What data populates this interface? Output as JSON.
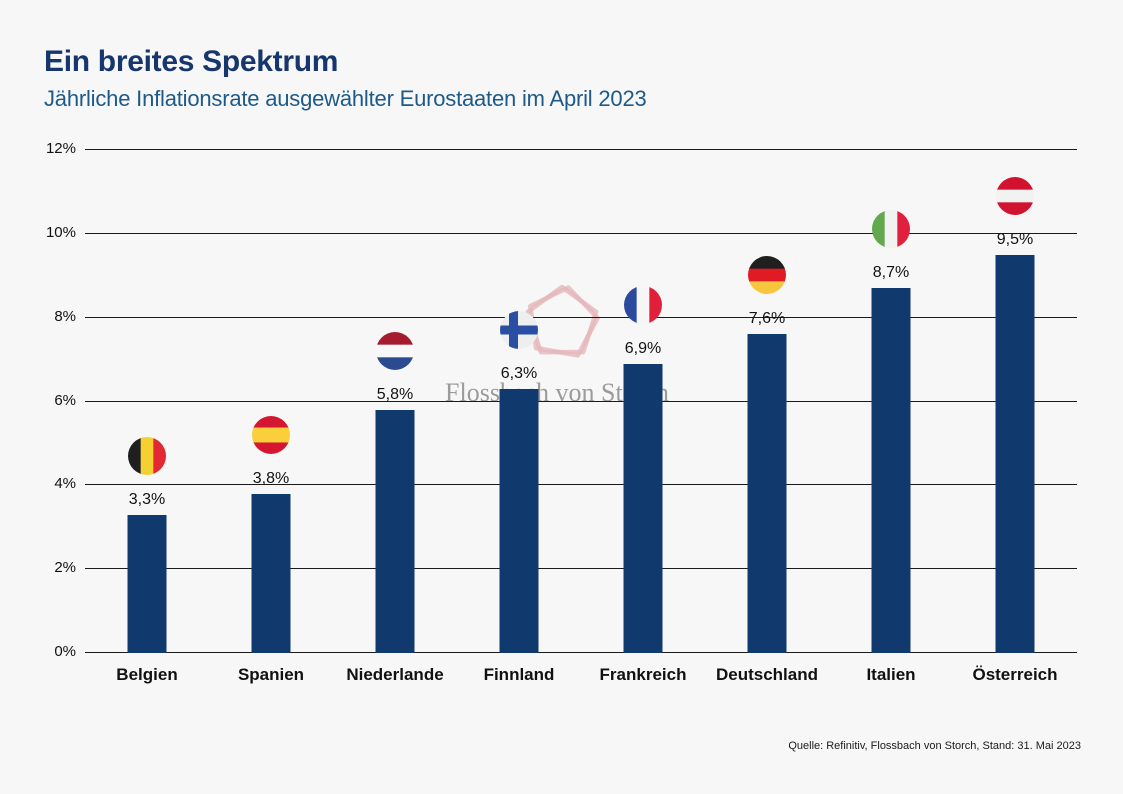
{
  "page": {
    "background": "#f7f7f7"
  },
  "header": {
    "title": "Ein breites Spektrum",
    "subtitle": "Jährliche Inflationsrate ausgewählter Eurostaaten im April 2023",
    "title_color": "#17366d",
    "subtitle_color": "#1d5a8a"
  },
  "watermark": {
    "text": "Flossbach von Storch",
    "text_color": "#9b9b9b",
    "pentagon_color": "#e5b6ba",
    "logo_icon": "flossbach-pentagon-logo-icon"
  },
  "footer": {
    "source": "Quelle: Refinitiv, Flossbach von Storch, Stand: 31. Mai 2023"
  },
  "chart_data": {
    "type": "bar",
    "title": "Ein breites Spektrum",
    "subtitle": "Jährliche Inflationsrate ausgewählter Eurostaaten im April 2023",
    "categories": [
      "Belgien",
      "Spanien",
      "Niederlande",
      "Finnland",
      "Frankreich",
      "Deutschland",
      "Italien",
      "Österreich"
    ],
    "values": [
      3.3,
      3.8,
      5.8,
      6.3,
      6.9,
      7.6,
      8.7,
      9.5
    ],
    "value_labels": [
      "3,3%",
      "3,8%",
      "5,8%",
      "6,3%",
      "6,9%",
      "7,6%",
      "8,7%",
      "9,5%"
    ],
    "unit": "%",
    "ylim": [
      0,
      12
    ],
    "yticks": [
      0,
      2,
      4,
      6,
      8,
      10,
      12
    ],
    "ytick_labels": [
      "0%",
      "2%",
      "4%",
      "6%",
      "8%",
      "10%",
      "12%"
    ],
    "grid": true,
    "legend": false,
    "bar_color": "#103a6e",
    "flags": [
      {
        "icon": "flag-belgien-icon",
        "kind": "stripes-v",
        "colors": [
          "#1f1f1f",
          "#f5d033",
          "#e22832"
        ],
        "weights": [
          1,
          1,
          1
        ]
      },
      {
        "icon": "flag-spanien-icon",
        "kind": "stripes-h",
        "colors": [
          "#d41630",
          "#fbce3c",
          "#d41630"
        ],
        "weights": [
          1,
          1.3,
          1
        ]
      },
      {
        "icon": "flag-niederlande-icon",
        "kind": "stripes-h",
        "colors": [
          "#a51c30",
          "#f8f8f8",
          "#2a4b8f"
        ],
        "weights": [
          1,
          1,
          1
        ]
      },
      {
        "icon": "flag-finnland-icon",
        "kind": "nordic",
        "colors": [
          "#eeeeee",
          "#2a4fa2"
        ]
      },
      {
        "icon": "flag-frankreich-icon",
        "kind": "stripes-v",
        "colors": [
          "#2b4a9e",
          "#f6f6f6",
          "#e0203a"
        ],
        "weights": [
          1,
          1,
          1
        ]
      },
      {
        "icon": "flag-deutschland-icon",
        "kind": "stripes-h",
        "colors": [
          "#1f1f1f",
          "#e11b23",
          "#f6c73e"
        ],
        "weights": [
          1,
          1,
          1
        ]
      },
      {
        "icon": "flag-italien-icon",
        "kind": "stripes-v",
        "colors": [
          "#61a84f",
          "#f2f2f2",
          "#e0203c"
        ],
        "weights": [
          1,
          1,
          1
        ]
      },
      {
        "icon": "flag-osterreich-icon",
        "kind": "stripes-h",
        "colors": [
          "#d11330",
          "#f2f2f2",
          "#d11330"
        ],
        "weights": [
          1,
          1,
          1
        ]
      }
    ]
  }
}
